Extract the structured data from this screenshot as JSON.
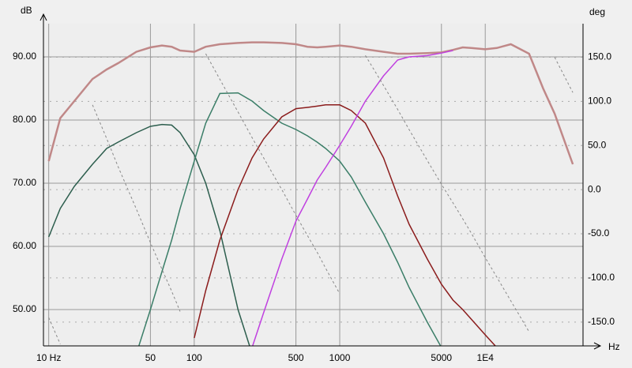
{
  "chart_data": {
    "type": "line",
    "x_label": "Hz",
    "y_label": "dB",
    "y2_label": "deg",
    "x": [
      10,
      12,
      15,
      20,
      25,
      30,
      40,
      50,
      60,
      70,
      80,
      100,
      120,
      150,
      200,
      250,
      300,
      400,
      500,
      600,
      700,
      800,
      1000,
      1200,
      1500,
      2000,
      2500,
      3000,
      4000,
      5000,
      6000,
      7000,
      8000,
      10000,
      12000,
      15000,
      20000,
      25000,
      30000,
      40000
    ],
    "xlog": true,
    "xlim": [
      9.2,
      47000
    ],
    "xticks": [
      {
        "value": 10,
        "label": "10 Hz"
      },
      50,
      100,
      500,
      1000,
      5000,
      {
        "value": 10000,
        "label": "1E4"
      }
    ],
    "ylim": [
      44.25,
      95.25
    ],
    "yticks": [
      {
        "value": 50,
        "label": "50.00"
      },
      {
        "value": 60,
        "label": "60.00"
      },
      {
        "value": 70,
        "label": "70.00"
      },
      {
        "value": 80,
        "label": "80.00"
      },
      {
        "value": 90,
        "label": "90.00"
      }
    ],
    "y2lim": [
      -177,
      188
    ],
    "y2ticks": [
      {
        "value": -150,
        "label": "-150.0"
      },
      {
        "value": -100,
        "label": "-100.0"
      },
      {
        "value": -50,
        "label": "-50.0"
      },
      {
        "value": 0,
        "label": "0.0"
      },
      {
        "value": 50,
        "label": "50.0"
      },
      {
        "value": 100,
        "label": "100.0"
      },
      {
        "value": 150,
        "label": "150.0"
      }
    ],
    "grid": true,
    "series": [
      {
        "color": "#c08888",
        "width": 2.5,
        "values": [
          73.5,
          80.3,
          83,
          86.5,
          88,
          89,
          90.8,
          91.5,
          91.8,
          91.6,
          91,
          90.8,
          91.6,
          92,
          92.2,
          92.3,
          92.3,
          92.2,
          92,
          91.6,
          91.5,
          91.6,
          91.8,
          91.6,
          91.2,
          90.8,
          90.5,
          90.5,
          90.6,
          90.7,
          91.1,
          91.5,
          91.4,
          91.2,
          91.4,
          92,
          90.5,
          85,
          81,
          73
        ]
      },
      {
        "color": "#2d5e4e",
        "width": 1.5,
        "values": [
          61.5,
          66,
          69.5,
          73,
          75.5,
          76.5,
          78,
          79,
          79.3,
          79.2,
          78,
          74.5,
          70,
          62.5,
          50,
          43,
          null,
          null,
          null,
          null,
          null,
          null,
          null,
          null,
          null,
          null,
          null,
          null,
          null,
          null,
          null,
          null,
          null,
          null,
          null,
          null,
          null,
          null,
          null,
          null
        ]
      },
      {
        "color": "#3b7e68",
        "width": 1.5,
        "values": [
          null,
          null,
          null,
          null,
          null,
          null,
          43,
          50,
          56,
          61,
          66,
          73.5,
          79.5,
          84.2,
          84.3,
          83,
          81.5,
          79.5,
          78.5,
          77.5,
          76.5,
          75.5,
          73.5,
          71,
          67,
          62,
          57.5,
          53.5,
          48,
          44,
          null,
          null,
          null,
          null,
          null,
          null,
          null,
          null,
          null,
          null
        ]
      },
      {
        "color": "#8b1c1c",
        "width": 1.5,
        "values": [
          null,
          null,
          null,
          null,
          null,
          null,
          null,
          null,
          null,
          null,
          null,
          45.5,
          53,
          61,
          69,
          74,
          77,
          80.5,
          81.8,
          82,
          82.2,
          82.4,
          82.4,
          81.5,
          79.5,
          74,
          68,
          63.5,
          58,
          54,
          51.5,
          50,
          48.5,
          46,
          44,
          null,
          null,
          null,
          null,
          null
        ]
      },
      {
        "color": "#c040e0",
        "width": 1.5,
        "values": [
          null,
          null,
          null,
          null,
          null,
          null,
          null,
          null,
          null,
          null,
          null,
          null,
          null,
          null,
          null,
          44,
          49.5,
          58,
          64,
          67.5,
          70.5,
          72.5,
          76,
          79,
          83,
          87,
          89.5,
          90,
          90.2,
          90.6,
          91,
          null,
          null,
          null,
          null,
          null,
          null,
          null,
          null,
          null
        ]
      },
      {
        "color": "#888888",
        "width": 1,
        "axis": "y2",
        "dashed": true,
        "values": [
          -145,
          -175,
          null,
          96,
          58,
          26,
          -22,
          -60,
          -90,
          -115,
          -138,
          null,
          154,
          125,
          88,
          59,
          36,
          0,
          -29,
          -52,
          -71,
          -89,
          -118,
          null,
          152,
          118,
          91,
          68,
          33,
          6,
          -15,
          -33,
          -49,
          -77,
          -99,
          -126,
          -161,
          null,
          150,
          110
        ]
      }
    ]
  }
}
